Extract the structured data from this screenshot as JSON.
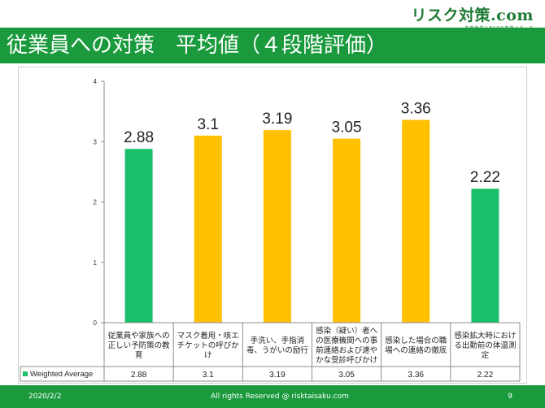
{
  "brand": {
    "name": "リスク対策.com",
    "tagline": "危機管理とBCPの専門メディア"
  },
  "slide": {
    "title": "従業員への対策　平均値（４段階評価）"
  },
  "footer": {
    "date": "2020/2/2",
    "copyright": "All rights Reserved @ risktaisaku.com",
    "page": "9"
  },
  "colors": {
    "title_bar": "#1a9a3c",
    "bar_green": "#1cc06a",
    "bar_yellow": "#ffc000"
  },
  "chart_data": {
    "type": "bar",
    "categories": [
      [
        "従業員や家族への",
        "正しい予防策の教",
        "育"
      ],
      [
        "マスク着用・咳エ",
        "チケットの呼びか",
        "け"
      ],
      [
        "手洗い、手指消",
        "毒、うがいの励行"
      ],
      [
        "感染（疑い）者へ",
        "の医療機関への事",
        "前連絡および速や",
        "かな受診呼びかけ"
      ],
      [
        "感染した場合の職",
        "場への連絡の徹底"
      ],
      [
        "感染拡大時におけ",
        "る出勤前の体温測",
        "定"
      ]
    ],
    "series": [
      {
        "name": "Weighted Average",
        "values": [
          2.88,
          3.1,
          3.19,
          3.05,
          3.36,
          2.22
        ],
        "labels": [
          "2.88",
          "3.1",
          "3.19",
          "3.05",
          "3.36",
          "2.22"
        ]
      }
    ],
    "bar_colors": [
      "green",
      "yellow",
      "yellow",
      "yellow",
      "yellow",
      "green"
    ],
    "yticks": [
      "0",
      "1",
      "2",
      "3",
      "4"
    ],
    "ylim": [
      0,
      4
    ],
    "grid": false,
    "data_table": true,
    "xlabel": "",
    "ylabel": ""
  }
}
